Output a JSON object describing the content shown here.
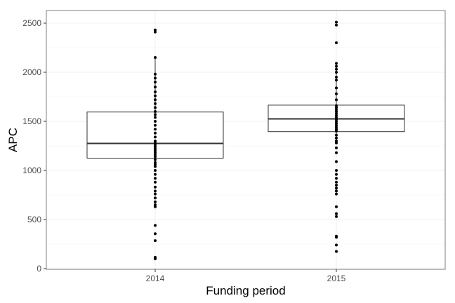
{
  "chart_data": {
    "type": "boxplot",
    "xlabel": "Funding period",
    "ylabel": "APC",
    "categories": [
      "2014",
      "2015"
    ],
    "ylim": [
      0,
      2600
    ],
    "yticks": [
      "0",
      "500",
      "1000",
      "1500",
      "2000",
      "2500"
    ],
    "grid": true,
    "legend": "none",
    "colors": {
      "panel_border": "#7f7f7f",
      "grid_major": "#ebebeb",
      "grid_minor": "#f5f5f5",
      "box_line": "#333333",
      "point": "#000000"
    },
    "boxes": [
      {
        "category": "2014",
        "whisker_low": 1060,
        "q1": 1125,
        "median": 1275,
        "q3": 1595,
        "whisker_high": 2150,
        "points": [
          100,
          115,
          285,
          355,
          440,
          630,
          650,
          680,
          720,
          760,
          790,
          830,
          880,
          920,
          960,
          1000,
          1040,
          1060,
          1080,
          1110,
          1140,
          1160,
          1180,
          1200,
          1220,
          1240,
          1260,
          1280,
          1300,
          1340,
          1380,
          1420,
          1460,
          1500,
          1540,
          1570,
          1600,
          1640,
          1680,
          1720,
          1760,
          1800,
          1850,
          1900,
          1940,
          1980,
          2150,
          2410,
          2430
        ]
      },
      {
        "category": "2015",
        "whisker_low": 1280,
        "q1": 1395,
        "median": 1525,
        "q3": 1665,
        "whisker_high": 2090,
        "points": [
          175,
          240,
          320,
          330,
          530,
          560,
          630,
          760,
          790,
          820,
          850,
          880,
          920,
          960,
          1000,
          1090,
          1180,
          1230,
          1280,
          1300,
          1330,
          1360,
          1400,
          1420,
          1440,
          1460,
          1480,
          1500,
          1520,
          1540,
          1560,
          1580,
          1600,
          1620,
          1640,
          1660,
          1720,
          1780,
          1840,
          1920,
          1950,
          2000,
          2030,
          2060,
          2090,
          2300,
          2480,
          2510
        ]
      }
    ]
  }
}
